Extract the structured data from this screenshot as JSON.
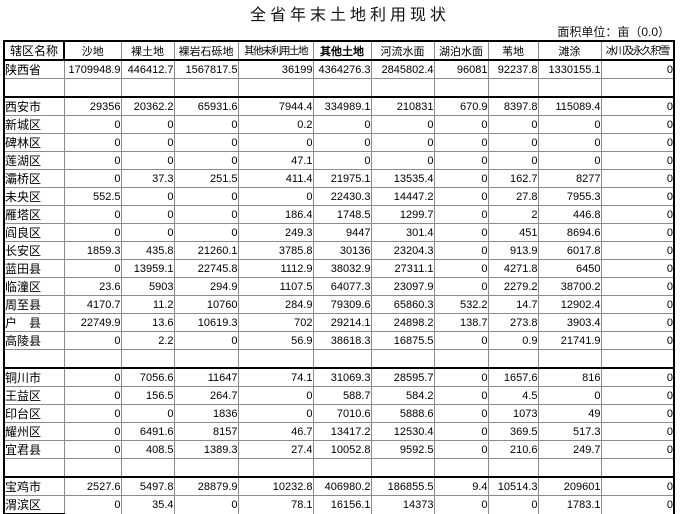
{
  "title": "全省年末土地利用现状",
  "unit_label": "面积单位：亩（0.0）",
  "table": {
    "columns": [
      {
        "label": "辖区名称",
        "emphasis": false
      },
      {
        "label": "沙地",
        "emphasis": false
      },
      {
        "label": "裸土地",
        "emphasis": false
      },
      {
        "label": "裸岩石砾地",
        "emphasis": false
      },
      {
        "label": "其他未利用土地",
        "emphasis": false
      },
      {
        "label": "其他土地",
        "emphasis": true
      },
      {
        "label": "河流水面",
        "emphasis": false
      },
      {
        "label": "湖泊水面",
        "emphasis": false
      },
      {
        "label": "苇地",
        "emphasis": false
      },
      {
        "label": "滩涂",
        "emphasis": false
      },
      {
        "label": "冰川及永久积雪",
        "emphasis": false
      }
    ],
    "rows": [
      {
        "name": "陕西省",
        "type": "province",
        "values": [
          "1709948.9",
          "446412.7",
          "1567817.5",
          "36199",
          "4364276.3",
          "2845802.4",
          "96081",
          "92237.8",
          "1330155.1",
          "0"
        ]
      },
      {
        "name": "",
        "type": "blank",
        "values": [
          "",
          "",
          "",
          "",
          "",
          "",
          "",
          "",
          "",
          ""
        ]
      },
      {
        "name": "西安市",
        "type": "city",
        "values": [
          "29356",
          "20362.2",
          "65931.6",
          "7944.4",
          "334989.1",
          "210831",
          "670.9",
          "8397.8",
          "115089.4",
          "0"
        ]
      },
      {
        "name": "新城区",
        "type": "district",
        "values": [
          "0",
          "0",
          "0",
          "0.2",
          "0",
          "0",
          "0",
          "0",
          "0",
          "0"
        ]
      },
      {
        "name": "碑林区",
        "type": "district",
        "values": [
          "0",
          "0",
          "0",
          "0",
          "0",
          "0",
          "0",
          "0",
          "0",
          "0"
        ]
      },
      {
        "name": "莲湖区",
        "type": "district",
        "values": [
          "0",
          "0",
          "0",
          "47.1",
          "0",
          "0",
          "0",
          "0",
          "0",
          "0"
        ]
      },
      {
        "name": "灞桥区",
        "type": "district",
        "values": [
          "0",
          "37.3",
          "251.5",
          "411.4",
          "21975.1",
          "13535.4",
          "0",
          "162.7",
          "8277",
          "0"
        ]
      },
      {
        "name": "未央区",
        "type": "district",
        "values": [
          "552.5",
          "0",
          "0",
          "0",
          "22430.3",
          "14447.2",
          "0",
          "27.8",
          "7955.3",
          "0"
        ]
      },
      {
        "name": "雁塔区",
        "type": "district",
        "values": [
          "0",
          "0",
          "0",
          "186.4",
          "1748.5",
          "1299.7",
          "0",
          "2",
          "446.8",
          "0"
        ]
      },
      {
        "name": "阎良区",
        "type": "district",
        "values": [
          "0",
          "0",
          "0",
          "249.3",
          "9447",
          "301.4",
          "0",
          "451",
          "8694.6",
          "0"
        ]
      },
      {
        "name": "长安区",
        "type": "district",
        "values": [
          "1859.3",
          "435.8",
          "21260.1",
          "3785.8",
          "30136",
          "23204.3",
          "0",
          "913.9",
          "6017.8",
          "0"
        ]
      },
      {
        "name": "蓝田县",
        "type": "district",
        "values": [
          "0",
          "13959.1",
          "22745.8",
          "1112.9",
          "38032.9",
          "27311.1",
          "0",
          "4271.8",
          "6450",
          "0"
        ]
      },
      {
        "name": "临潼区",
        "type": "district",
        "values": [
          "23.6",
          "5903",
          "294.9",
          "1107.5",
          "64077.3",
          "23097.9",
          "0",
          "2279.2",
          "38700.2",
          "0"
        ]
      },
      {
        "name": "周至县",
        "type": "district",
        "values": [
          "4170.7",
          "11.2",
          "10760",
          "284.9",
          "79309.6",
          "65860.3",
          "532.2",
          "14.7",
          "12902.4",
          "0"
        ]
      },
      {
        "name": "户　县",
        "type": "district",
        "values": [
          "22749.9",
          "13.6",
          "10619.3",
          "702",
          "29214.1",
          "24898.2",
          "138.7",
          "273.8",
          "3903.4",
          "0"
        ]
      },
      {
        "name": "高陵县",
        "type": "district",
        "values": [
          "0",
          "2.2",
          "0",
          "56.9",
          "38618.3",
          "16875.5",
          "0",
          "0.9",
          "21741.9",
          "0"
        ]
      },
      {
        "name": "",
        "type": "blank",
        "values": [
          "",
          "",
          "",
          "",
          "",
          "",
          "",
          "",
          "",
          ""
        ]
      },
      {
        "name": "铜川市",
        "type": "city",
        "values": [
          "0",
          "7056.6",
          "11647",
          "74.1",
          "31069.3",
          "28595.7",
          "0",
          "1657.6",
          "816",
          "0"
        ]
      },
      {
        "name": "王益区",
        "type": "district",
        "values": [
          "0",
          "156.5",
          "264.7",
          "0",
          "588.7",
          "584.2",
          "0",
          "4.5",
          "0",
          "0"
        ]
      },
      {
        "name": "印台区",
        "type": "district",
        "values": [
          "0",
          "0",
          "1836",
          "0",
          "7010.6",
          "5888.6",
          "0",
          "1073",
          "49",
          "0"
        ]
      },
      {
        "name": "耀州区",
        "type": "district",
        "values": [
          "0",
          "6491.6",
          "8157",
          "46.7",
          "13417.2",
          "12530.4",
          "0",
          "369.5",
          "517.3",
          "0"
        ]
      },
      {
        "name": "宜君县",
        "type": "district",
        "values": [
          "0",
          "408.5",
          "1389.3",
          "27.4",
          "10052.8",
          "9592.5",
          "0",
          "210.6",
          "249.7",
          "0"
        ]
      },
      {
        "name": "",
        "type": "blank",
        "values": [
          "",
          "",
          "",
          "",
          "",
          "",
          "",
          "",
          "",
          ""
        ]
      },
      {
        "name": "宝鸡市",
        "type": "city",
        "values": [
          "2527.6",
          "5497.8",
          "28879.9",
          "10232.8",
          "406980.2",
          "186855.5",
          "9.4",
          "10514.3",
          "209601",
          "0"
        ]
      },
      {
        "name": "渭滨区",
        "type": "district",
        "values": [
          "0",
          "35.4",
          "0",
          "78.1",
          "16156.1",
          "14373",
          "0",
          "0",
          "1783.1",
          "0"
        ]
      }
    ]
  }
}
